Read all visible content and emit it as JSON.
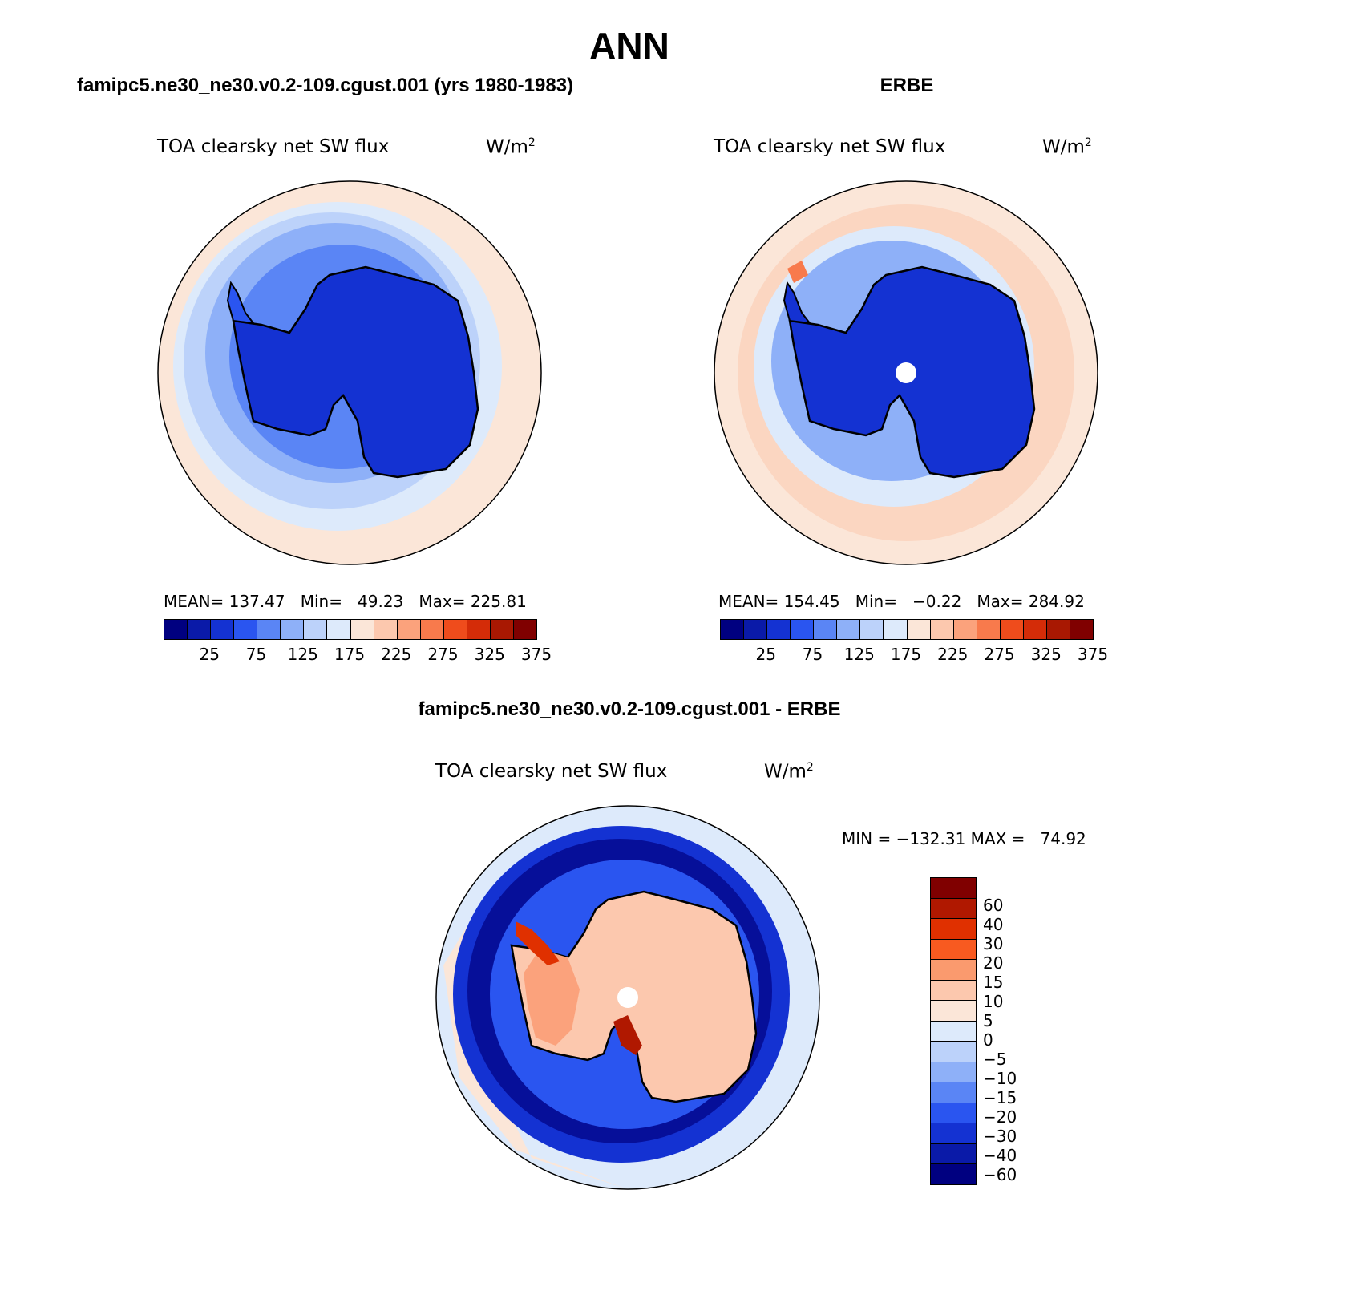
{
  "main_title": "ANN",
  "panel_left": {
    "header": "famipc5.ne30_ne30.v0.2-109.cgust.001 (yrs 1980-1983)",
    "variable": "TOA clearsky net SW flux",
    "units": "W/m",
    "units_sup": "2",
    "stats": "MEAN= 137.47   Min=   49.23   Max= 225.81"
  },
  "panel_right": {
    "header": "ERBE",
    "variable": "TOA clearsky net SW flux",
    "units": "W/m",
    "units_sup": "2",
    "stats": "MEAN= 154.45   Min=   −0.22   Max= 284.92"
  },
  "panel_diff": {
    "header": "famipc5.ne30_ne30.v0.2-109.cgust.001 - ERBE",
    "variable": "TOA clearsky net SW flux",
    "units": "W/m",
    "units_sup": "2",
    "minmax": "MIN = −132.31 MAX =   74.92"
  },
  "colorbar_abs": {
    "labels": [
      "25",
      "75",
      "125",
      "175",
      "225",
      "275",
      "325",
      "375"
    ],
    "colors": [
      "#000080",
      "#0a1aa8",
      "#1432d2",
      "#2a55f0",
      "#5a85f5",
      "#8eb0f8",
      "#bcd2fa",
      "#ddeafb",
      "#fbe6d8",
      "#fcc8ae",
      "#fba27c",
      "#f87a4c",
      "#ef4c1c",
      "#d42c08",
      "#a81802",
      "#800000"
    ]
  },
  "colorbar_diff": {
    "labels": [
      "60",
      "40",
      "30",
      "20",
      "15",
      "10",
      "5",
      "0",
      "−5",
      "−10",
      "−15",
      "−20",
      "−30",
      "−40",
      "−60"
    ],
    "colors": [
      "#800000",
      "#b01800",
      "#e03000",
      "#f85a20",
      "#fa9a6e",
      "#fcc8ae",
      "#fbe6d8",
      "#ddeafb",
      "#bcd2fa",
      "#8eb0f8",
      "#5a85f5",
      "#2a55f0",
      "#1432d2",
      "#0a1aa8",
      "#000080"
    ]
  }
}
